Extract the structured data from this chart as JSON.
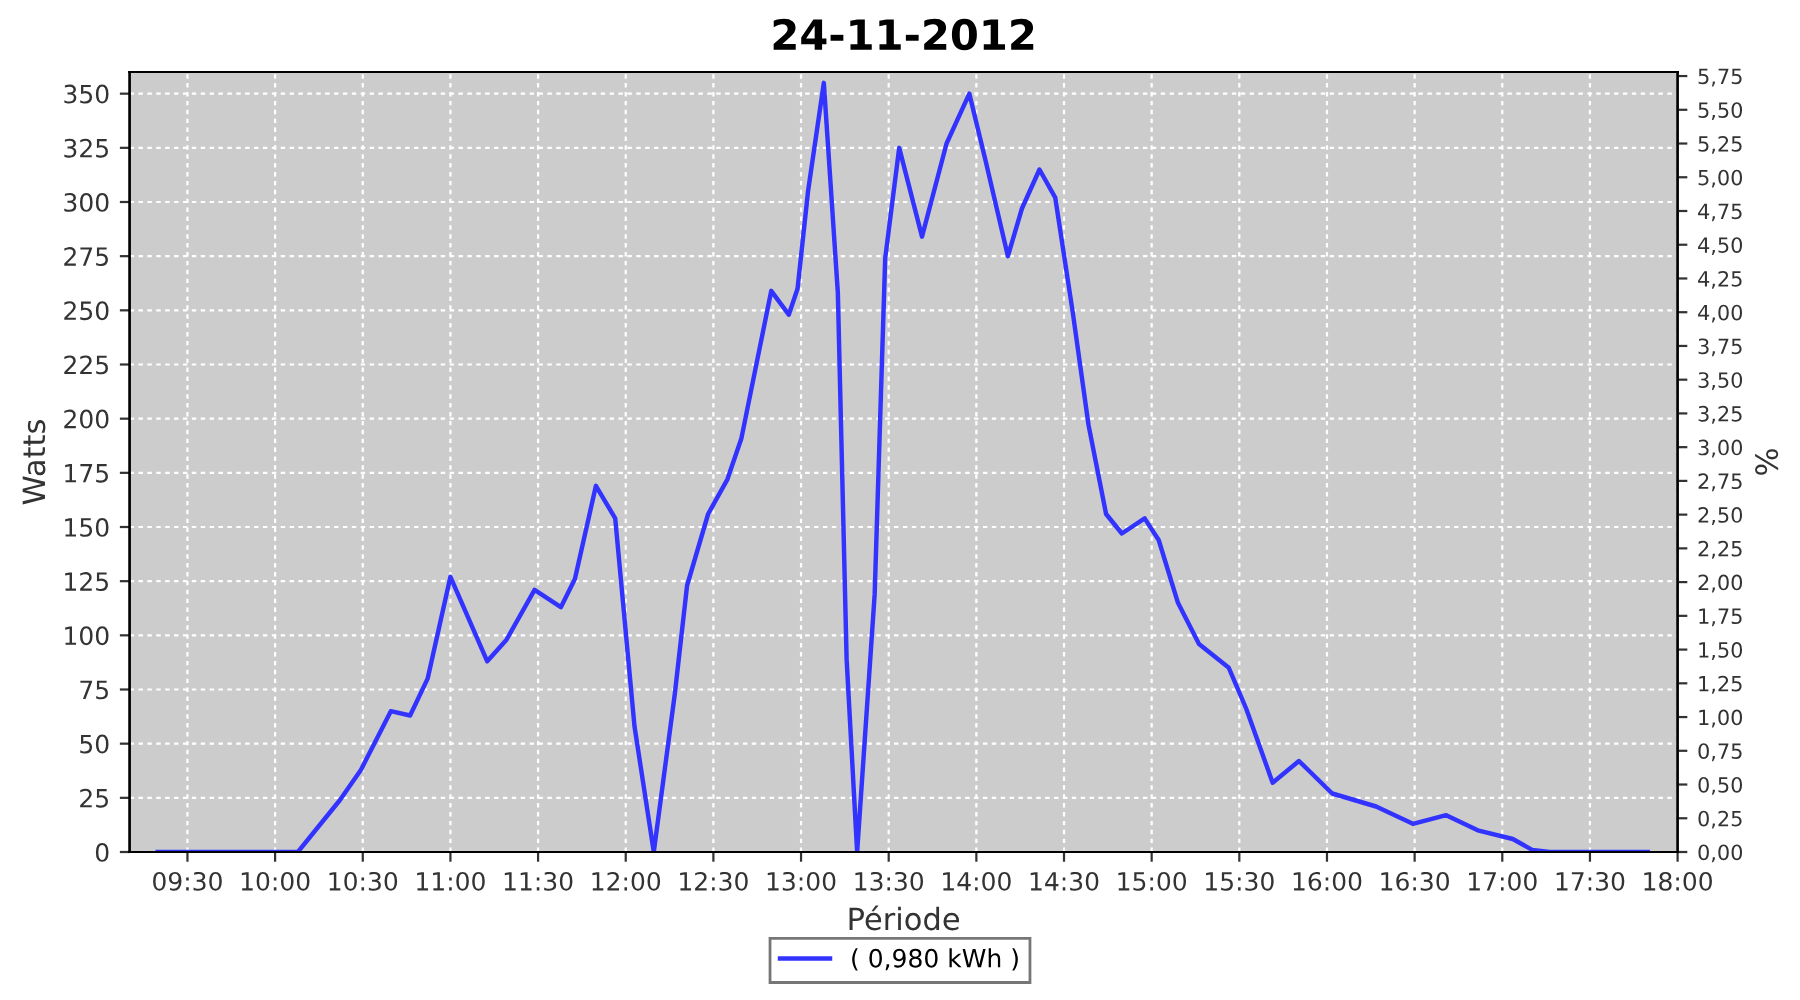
{
  "chart_data": {
    "type": "line",
    "title": "24-11-2012",
    "xlabel": "Période",
    "ylabel": "Watts",
    "y2label": "%",
    "xlim": [
      9.17,
      18.0
    ],
    "xticks": [
      {
        "value": 9.5,
        "label": "09:30"
      },
      {
        "value": 10,
        "label": "10:00"
      },
      {
        "value": 10.5,
        "label": "10:30"
      },
      {
        "value": 11,
        "label": "11:00"
      },
      {
        "value": 11.5,
        "label": "11:30"
      },
      {
        "value": 12,
        "label": "12:00"
      },
      {
        "value": 12.5,
        "label": "12:30"
      },
      {
        "value": 13,
        "label": "13:00"
      },
      {
        "value": 13.5,
        "label": "13:30"
      },
      {
        "value": 14,
        "label": "14:00"
      },
      {
        "value": 14.5,
        "label": "14:30"
      },
      {
        "value": 15,
        "label": "15:00"
      },
      {
        "value": 15.5,
        "label": "15:30"
      },
      {
        "value": 16,
        "label": "16:00"
      },
      {
        "value": 16.5,
        "label": "16:30"
      },
      {
        "value": 17,
        "label": "17:00"
      },
      {
        "value": 17.5,
        "label": "17:30"
      },
      {
        "value": 18,
        "label": "18:00"
      }
    ],
    "ylim": [
      0,
      360
    ],
    "yticks": [
      0,
      25,
      50,
      75,
      100,
      125,
      150,
      175,
      200,
      225,
      250,
      275,
      300,
      325,
      350
    ],
    "y2lim": [
      0,
      5.78
    ],
    "y2ticks": [
      {
        "value": 0,
        "label": "0,00"
      },
      {
        "value": 0.25,
        "label": "0,25"
      },
      {
        "value": 0.5,
        "label": "0,50"
      },
      {
        "value": 0.75,
        "label": "0,75"
      },
      {
        "value": 1,
        "label": "1,00"
      },
      {
        "value": 1.25,
        "label": "1,25"
      },
      {
        "value": 1.5,
        "label": "1,50"
      },
      {
        "value": 1.75,
        "label": "1,75"
      },
      {
        "value": 2,
        "label": "2,00"
      },
      {
        "value": 2.25,
        "label": "2,25"
      },
      {
        "value": 2.5,
        "label": "2,50"
      },
      {
        "value": 2.75,
        "label": "2,75"
      },
      {
        "value": 3,
        "label": "3,00"
      },
      {
        "value": 3.25,
        "label": "3,25"
      },
      {
        "value": 3.5,
        "label": "3,50"
      },
      {
        "value": 3.75,
        "label": "3,75"
      },
      {
        "value": 4,
        "label": "4,00"
      },
      {
        "value": 4.25,
        "label": "4,25"
      },
      {
        "value": 4.5,
        "label": "4,50"
      },
      {
        "value": 4.75,
        "label": "4,75"
      },
      {
        "value": 5,
        "label": "5,00"
      },
      {
        "value": 5.25,
        "label": "5,25"
      },
      {
        "value": 5.5,
        "label": "5,50"
      },
      {
        "value": 5.75,
        "label": "5,75"
      }
    ],
    "grid": true,
    "legend": "bottom",
    "marker": "none",
    "line_style": "solid",
    "series": [
      {
        "name": "( 0,980 kWh )",
        "color": "#3333ff",
        "x": [
          9.33,
          10.13,
          10.37,
          10.49,
          10.66,
          10.77,
          10.87,
          11.0,
          11.21,
          11.32,
          11.48,
          11.63,
          11.71,
          11.83,
          11.94,
          12.05,
          12.16,
          12.28,
          12.35,
          12.47,
          12.58,
          12.66,
          12.83,
          12.93,
          12.98,
          13.04,
          13.13,
          13.21,
          13.26,
          13.32,
          13.42,
          13.48,
          13.56,
          13.69,
          13.83,
          13.96,
          14.05,
          14.18,
          14.26,
          14.36,
          14.45,
          14.55,
          14.64,
          14.74,
          14.83,
          14.96,
          15.04,
          15.15,
          15.27,
          15.44,
          15.54,
          15.69,
          15.84,
          16.03,
          16.28,
          16.49,
          16.68,
          16.86,
          17.06,
          17.17,
          17.27,
          17.83
        ],
        "values": [
          0,
          0,
          24,
          38,
          65,
          63,
          80,
          127,
          88,
          98,
          121,
          113,
          126,
          169,
          154,
          58,
          0,
          73,
          123,
          156,
          172,
          191,
          259,
          248,
          260,
          305,
          355,
          258,
          89,
          0,
          119,
          274,
          325,
          284,
          327,
          350,
          320,
          275,
          297,
          315,
          302,
          249,
          197,
          156,
          147,
          154,
          144,
          115,
          96,
          85,
          66,
          32,
          42,
          27,
          21,
          13,
          17,
          10,
          6,
          1,
          0,
          0
        ]
      }
    ]
  }
}
